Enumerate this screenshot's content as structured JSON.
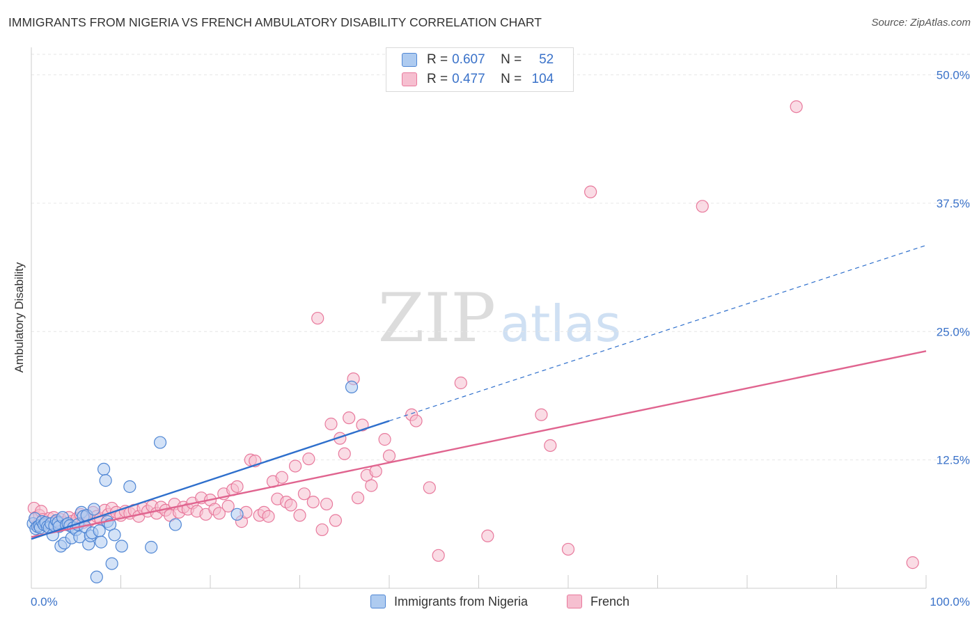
{
  "header": {
    "title": "IMMIGRANTS FROM NIGERIA VS FRENCH AMBULATORY DISABILITY CORRELATION CHART",
    "source": "Source: ZipAtlas.com"
  },
  "watermark": {
    "zip": "ZIP",
    "atlas": "atlas"
  },
  "stats": {
    "r_label": "R =",
    "n_label": "N =",
    "nigeria": {
      "r": "0.607",
      "n": "52"
    },
    "french": {
      "r": "0.477",
      "n": "104"
    }
  },
  "colors": {
    "nigeria_fill": "#aecbf0",
    "nigeria_stroke": "#4f86d4",
    "nigeria_line": "#2e6fcc",
    "french_fill": "#f6bfd0",
    "french_stroke": "#e8799c",
    "french_line": "#e0648f",
    "axis_text": "#3a72c9",
    "grid": "#e6e6e6"
  },
  "chart_data": {
    "type": "scatter",
    "title": "IMMIGRANTS FROM NIGERIA VS FRENCH AMBULATORY DISABILITY CORRELATION CHART",
    "xlabel": "",
    "ylabel": "Ambulatory Disability",
    "xlim": [
      0,
      100
    ],
    "ylim": [
      0,
      52
    ],
    "x_tick_labels": [
      "0.0%",
      "100.0%"
    ],
    "y_ticks": [
      12.5,
      25.0,
      37.5,
      50.0
    ],
    "y_tick_labels": [
      "12.5%",
      "25.0%",
      "37.5%",
      "50.0%"
    ],
    "grid": "horizontal dashed",
    "legend": "bottom-center",
    "series": [
      {
        "name": "Immigrants from Nigeria",
        "points": [
          [
            0.2,
            6.3
          ],
          [
            0.4,
            6.8
          ],
          [
            0.5,
            5.8
          ],
          [
            0.7,
            6.0
          ],
          [
            0.9,
            6.1
          ],
          [
            1.0,
            5.9
          ],
          [
            1.2,
            6.5
          ],
          [
            1.4,
            6.2
          ],
          [
            1.6,
            6.4
          ],
          [
            1.8,
            6.0
          ],
          [
            2.0,
            5.9
          ],
          [
            2.2,
            6.3
          ],
          [
            2.4,
            5.2
          ],
          [
            2.6,
            6.1
          ],
          [
            2.8,
            6.6
          ],
          [
            3.0,
            6.4
          ],
          [
            3.1,
            6.0
          ],
          [
            3.3,
            4.1
          ],
          [
            3.5,
            6.9
          ],
          [
            3.7,
            4.4
          ],
          [
            3.9,
            6.2
          ],
          [
            4.1,
            6.3
          ],
          [
            4.3,
            6.1
          ],
          [
            4.5,
            4.9
          ],
          [
            4.7,
            5.9
          ],
          [
            5.0,
            5.7
          ],
          [
            5.2,
            6.2
          ],
          [
            5.4,
            5.0
          ],
          [
            5.6,
            7.4
          ],
          [
            5.8,
            7.0
          ],
          [
            6.0,
            6.0
          ],
          [
            6.2,
            7.1
          ],
          [
            6.4,
            4.3
          ],
          [
            6.6,
            5.1
          ],
          [
            6.8,
            5.4
          ],
          [
            7.0,
            7.7
          ],
          [
            7.3,
            1.1
          ],
          [
            7.6,
            5.6
          ],
          [
            7.8,
            4.5
          ],
          [
            8.1,
            11.6
          ],
          [
            8.3,
            10.5
          ],
          [
            8.5,
            6.5
          ],
          [
            8.8,
            6.2
          ],
          [
            9.0,
            2.4
          ],
          [
            9.3,
            5.2
          ],
          [
            10.1,
            4.1
          ],
          [
            11.0,
            9.9
          ],
          [
            13.4,
            4.0
          ],
          [
            14.4,
            14.2
          ],
          [
            16.1,
            6.2
          ],
          [
            23.0,
            7.2
          ],
          [
            35.8,
            19.6
          ]
        ]
      },
      {
        "name": "French",
        "points": [
          [
            0.3,
            7.8
          ],
          [
            0.5,
            6.9
          ],
          [
            0.7,
            6.2
          ],
          [
            0.9,
            7.1
          ],
          [
            1.1,
            7.5
          ],
          [
            1.3,
            6.7
          ],
          [
            1.6,
            6.4
          ],
          [
            1.8,
            6.0
          ],
          [
            2.0,
            6.8
          ],
          [
            2.3,
            6.3
          ],
          [
            2.5,
            6.9
          ],
          [
            2.8,
            6.5
          ],
          [
            3.0,
            6.1
          ],
          [
            3.3,
            6.7
          ],
          [
            3.6,
            6.4
          ],
          [
            3.9,
            6.2
          ],
          [
            4.2,
            6.9
          ],
          [
            4.5,
            6.5
          ],
          [
            4.8,
            6.3
          ],
          [
            5.1,
            6.8
          ],
          [
            5.5,
            7.2
          ],
          [
            5.8,
            6.4
          ],
          [
            6.2,
            7.0
          ],
          [
            6.5,
            6.6
          ],
          [
            6.9,
            7.4
          ],
          [
            7.3,
            7.0
          ],
          [
            7.7,
            6.8
          ],
          [
            8.2,
            7.6
          ],
          [
            8.6,
            7.2
          ],
          [
            9.0,
            7.8
          ],
          [
            9.5,
            7.4
          ],
          [
            10.0,
            7.1
          ],
          [
            10.5,
            7.5
          ],
          [
            11.0,
            7.3
          ],
          [
            11.5,
            7.6
          ],
          [
            12.0,
            7.0
          ],
          [
            12.5,
            7.8
          ],
          [
            13.0,
            7.5
          ],
          [
            13.5,
            8.0
          ],
          [
            14.0,
            7.3
          ],
          [
            14.5,
            7.9
          ],
          [
            15.0,
            7.6
          ],
          [
            15.5,
            7.1
          ],
          [
            16.0,
            8.2
          ],
          [
            16.5,
            7.4
          ],
          [
            17.0,
            7.9
          ],
          [
            17.5,
            7.7
          ],
          [
            18.0,
            8.3
          ],
          [
            18.5,
            7.5
          ],
          [
            19.0,
            8.8
          ],
          [
            19.5,
            7.2
          ],
          [
            20.0,
            8.6
          ],
          [
            20.5,
            7.7
          ],
          [
            21.0,
            7.3
          ],
          [
            21.5,
            9.2
          ],
          [
            22.0,
            8.0
          ],
          [
            22.5,
            9.6
          ],
          [
            23.0,
            9.9
          ],
          [
            23.5,
            6.5
          ],
          [
            24.0,
            7.4
          ],
          [
            24.5,
            12.5
          ],
          [
            25.0,
            12.4
          ],
          [
            25.5,
            7.1
          ],
          [
            26.0,
            7.4
          ],
          [
            26.5,
            7.0
          ],
          [
            27.0,
            10.4
          ],
          [
            27.5,
            8.7
          ],
          [
            28.0,
            10.8
          ],
          [
            28.5,
            8.4
          ],
          [
            29.0,
            8.1
          ],
          [
            29.5,
            11.9
          ],
          [
            30.0,
            7.1
          ],
          [
            30.5,
            9.2
          ],
          [
            31.0,
            12.6
          ],
          [
            31.5,
            8.4
          ],
          [
            32.0,
            26.3
          ],
          [
            32.5,
            5.7
          ],
          [
            33.0,
            8.2
          ],
          [
            33.5,
            16.0
          ],
          [
            34.0,
            6.6
          ],
          [
            34.5,
            14.6
          ],
          [
            35.0,
            13.1
          ],
          [
            35.5,
            16.6
          ],
          [
            36.0,
            20.4
          ],
          [
            36.5,
            8.8
          ],
          [
            37.0,
            15.9
          ],
          [
            37.5,
            11.0
          ],
          [
            38.0,
            10.0
          ],
          [
            38.5,
            11.4
          ],
          [
            39.5,
            14.5
          ],
          [
            40.0,
            12.9
          ],
          [
            42.5,
            16.9
          ],
          [
            43.0,
            16.3
          ],
          [
            44.5,
            9.8
          ],
          [
            45.5,
            3.2
          ],
          [
            48.0,
            20.0
          ],
          [
            51.0,
            5.1
          ],
          [
            57.0,
            16.9
          ],
          [
            58.0,
            13.9
          ],
          [
            60.0,
            3.8
          ],
          [
            62.5,
            38.6
          ],
          [
            75.0,
            37.2
          ],
          [
            85.5,
            46.9
          ],
          [
            98.5,
            2.5
          ]
        ]
      }
    ],
    "trendlines": [
      {
        "series": "Immigrants from Nigeria",
        "x": [
          0,
          40
        ],
        "y": [
          4.8,
          16.3
        ],
        "extended_x": [
          40,
          100
        ],
        "extended_y": [
          16.3,
          33.4
        ],
        "style": "solid then dashed"
      },
      {
        "series": "French",
        "x": [
          0,
          100
        ],
        "y": [
          5.0,
          23.1
        ],
        "style": "solid"
      }
    ]
  }
}
